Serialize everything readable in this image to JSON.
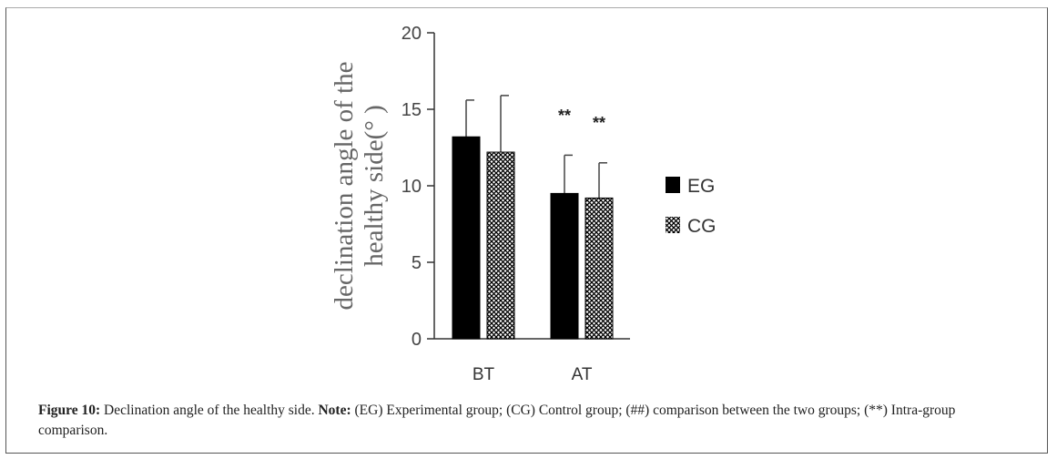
{
  "chart_data": {
    "type": "bar",
    "title": "",
    "xlabel": "",
    "ylabel": "declination angle of the healthy side(°)",
    "ylabel_lines": [
      "declination angle of the",
      "healthy side(°  )"
    ],
    "ylim": [
      0,
      20
    ],
    "yticks": [
      0,
      5,
      10,
      15,
      20
    ],
    "categories": [
      "BT",
      "AT"
    ],
    "series": [
      {
        "name": "EG",
        "values": [
          13.2,
          9.5
        ],
        "error_upper": [
          15.6,
          12.0
        ],
        "color": "#000000",
        "pattern": "solid"
      },
      {
        "name": "CG",
        "values": [
          12.2,
          9.2
        ],
        "error_upper": [
          15.9,
          11.5
        ],
        "color": "#000000",
        "pattern": "crosshatch"
      }
    ],
    "annotations": [
      {
        "category": "AT",
        "series": "EG",
        "text": "**"
      },
      {
        "category": "AT",
        "series": "CG",
        "text": "**"
      }
    ],
    "legend_placement": "right",
    "grid": false
  },
  "caption": {
    "label": "Figure 10:",
    "text": " Declination angle of the healthy side. ",
    "note_label": "Note:",
    "note_text": " (EG) Experimental group; (CG) Control group; (##)  comparison between the two groups; (**) Intra-group comparison."
  }
}
